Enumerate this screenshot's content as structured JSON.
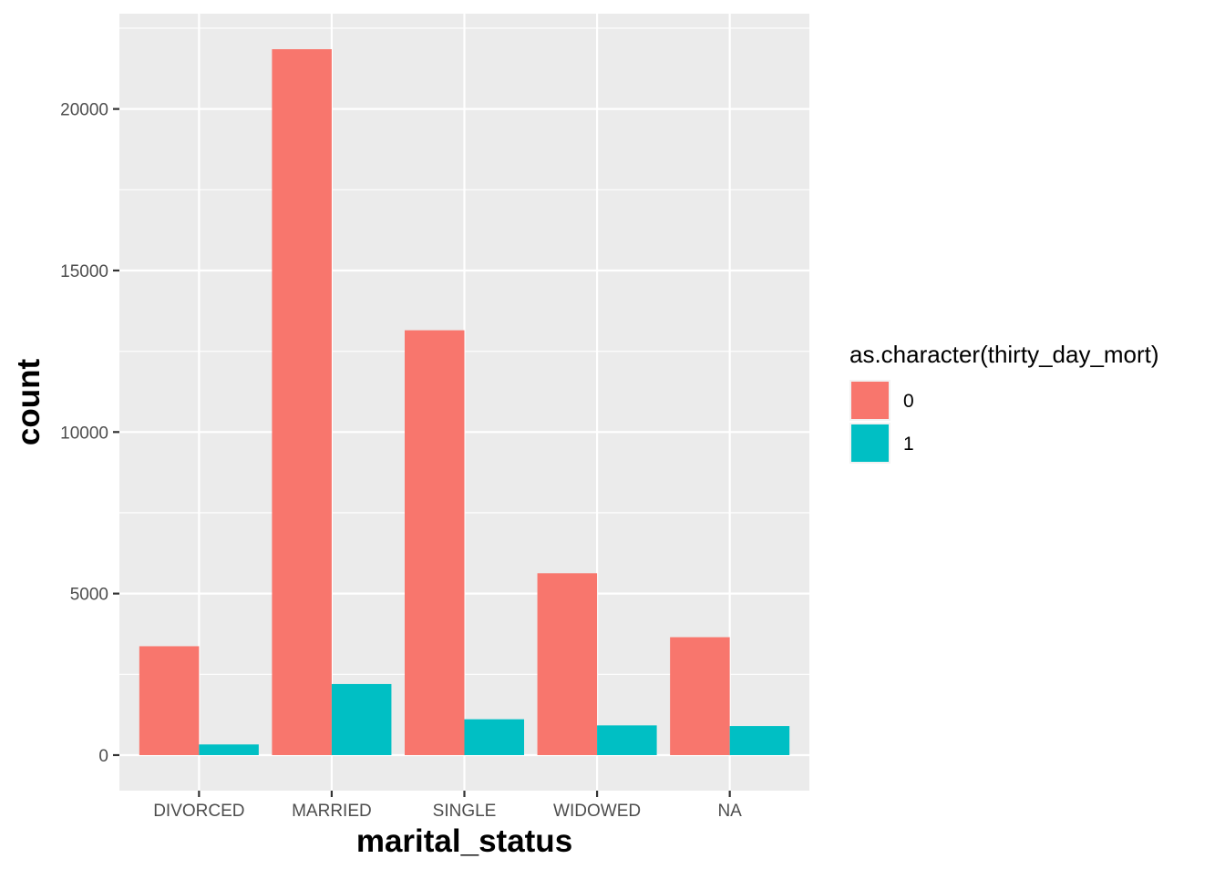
{
  "chart_data": {
    "type": "bar",
    "categories": [
      "DIVORCED",
      "MARRIED",
      "SINGLE",
      "WIDOWED",
      "NA"
    ],
    "series": [
      {
        "name": "0",
        "values": [
          3370,
          21850,
          13150,
          5630,
          3650
        ],
        "color": "#F8766D"
      },
      {
        "name": "1",
        "values": [
          330,
          2200,
          1110,
          920,
          900
        ],
        "color": "#00BFC4"
      }
    ],
    "xlabel": "marital_status",
    "ylabel": "count",
    "ylim": [
      -1100,
      22950
    ],
    "yticks": [
      0,
      5000,
      10000,
      15000,
      20000
    ],
    "ytick_labels": [
      "0",
      "5000",
      "10000",
      "15000",
      "20000"
    ],
    "legend": {
      "title": "as.character(thirty_day_mort)",
      "position": "right"
    },
    "grid": true,
    "panel_background": "#EBEBEB",
    "grid_color": "#FFFFFF"
  }
}
